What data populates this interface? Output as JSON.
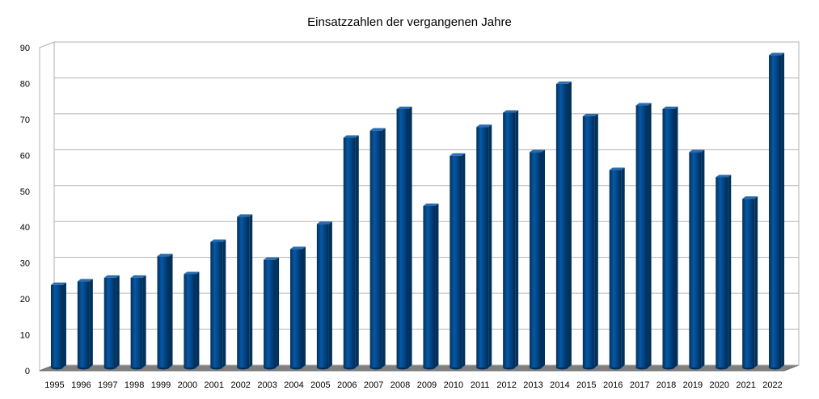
{
  "chart_data": {
    "type": "bar",
    "title": "Einsatzzahlen der vergangenen Jahre",
    "xlabel": "",
    "ylabel": "",
    "categories": [
      "1995",
      "1996",
      "1997",
      "1998",
      "1999",
      "2000",
      "2001",
      "2002",
      "2003",
      "2004",
      "2005",
      "2006",
      "2007",
      "2008",
      "2009",
      "2010",
      "2011",
      "2012",
      "2013",
      "2014",
      "2015",
      "2016",
      "2017",
      "2018",
      "2019",
      "2020",
      "2021",
      "2022"
    ],
    "values": [
      23,
      24,
      25,
      25,
      31,
      26,
      35,
      42,
      30,
      33,
      40,
      64,
      66,
      72,
      45,
      59,
      67,
      71,
      60,
      79,
      70,
      55,
      73,
      72,
      60,
      53,
      47,
      87
    ],
    "ylim": [
      0,
      90
    ],
    "yticks": [
      0,
      10,
      20,
      30,
      40,
      50,
      60,
      70,
      80,
      90
    ],
    "grid": true,
    "legend": "none",
    "colors": {
      "bar": "#004586",
      "bar_dark": "#00305c",
      "bar_light": "#2a6bb0",
      "grid": "#b3b3b3",
      "floor": "#7f7f7f"
    }
  }
}
